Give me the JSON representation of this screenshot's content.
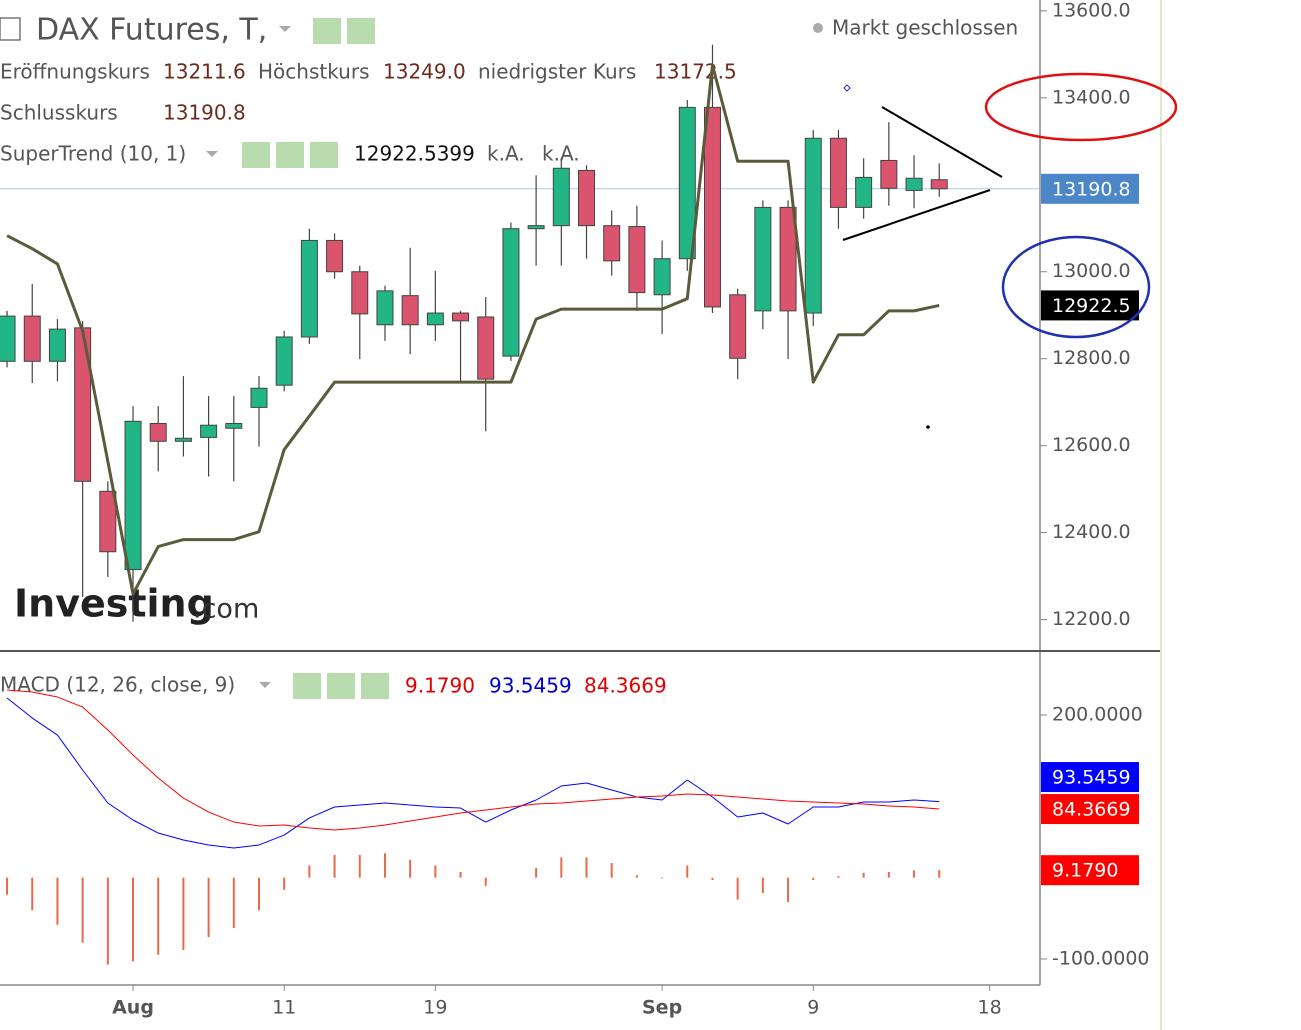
{
  "chart_data": [
    {
      "type": "candlestick",
      "title": "DAX Futures, T,",
      "status": "Markt geschlossen",
      "watermark": "Investing",
      "watermark_suffix": ".com",
      "legend_labels": {
        "open": "Eröffnungskurs",
        "high": "Höchstkurs",
        "low": "niedrigster Kurs",
        "close": "Schlusskurs"
      },
      "last_value_labels": {
        "open": "13211.6",
        "high": "13249.0",
        "low": "13172.5",
        "close": "13190.8"
      },
      "x": [
        0,
        1,
        2,
        3,
        4,
        5,
        6,
        7,
        8,
        9,
        10,
        11,
        12,
        13,
        14,
        15,
        16,
        17,
        18,
        19,
        20,
        21,
        22,
        23,
        24,
        25,
        26,
        27,
        28,
        29,
        30,
        31,
        32,
        33,
        34,
        35,
        36,
        37
      ],
      "xlim": [
        -0.28,
        41
      ],
      "open": [
        12794,
        12898,
        12794,
        12871,
        12495,
        12315,
        12651,
        12610,
        12619,
        12640,
        12688,
        12739,
        12850,
        13072,
        13000,
        12878,
        12945,
        12878,
        12905,
        12896,
        12806,
        13099,
        13106,
        13233,
        13106,
        13104,
        12947,
        13030,
        13378,
        12947,
        12910,
        13148,
        12905,
        13307,
        13148,
        13256,
        13187,
        13211.6
      ],
      "high": [
        12910,
        12972,
        12891,
        12887,
        12518,
        12691,
        12691,
        12760,
        12714,
        12714,
        12760,
        12864,
        13099,
        13088,
        13014,
        12968,
        13055,
        13002,
        12910,
        12942,
        13113,
        13222,
        13261,
        13245,
        13141,
        13152,
        13072,
        13395,
        13522,
        12961,
        13164,
        13164,
        13326,
        13326,
        13261,
        13344,
        13268,
        13249
      ],
      "low": [
        12780,
        12744,
        12748,
        12252,
        12298,
        12195,
        12541,
        12575,
        12529,
        12518,
        12598,
        12725,
        12834,
        12984,
        12799,
        12841,
        12811,
        12841,
        12748,
        12633,
        12795,
        13014,
        13014,
        13030,
        12991,
        12910,
        12857,
        13002,
        12905,
        12753,
        12868,
        12799,
        12875,
        13099,
        13122,
        13152,
        13146,
        13172.5
      ],
      "close": [
        12898,
        12794,
        12868,
        12518,
        12356,
        12656,
        12610,
        12617,
        12647,
        12651,
        12732,
        12850,
        13072,
        13000,
        12903,
        12956,
        12878,
        12905,
        12887,
        12753,
        13099,
        13106,
        13238,
        13106,
        13025,
        12952,
        13030,
        13378,
        12919,
        12801,
        13148,
        12910,
        13307,
        13148,
        13217,
        13192,
        13215,
        13190.8
      ],
      "up_color": "#22b585",
      "down_color": "#d9546c",
      "last_price_color": "#4a86c8",
      "series": [
        {
          "name": "SuperTrend (10, 1)",
          "color": "#5b5b3b",
          "values": [
            13083,
            13053,
            13018,
            12864,
            12564,
            12259,
            12368,
            12384,
            12384,
            12384,
            12402,
            12591,
            12668,
            12746,
            12746,
            12746,
            12746,
            12746,
            12746,
            12746,
            12746,
            12891,
            12914,
            12914,
            12914,
            12914,
            12914,
            12938,
            13475,
            13254,
            13254,
            13254,
            12746,
            12855,
            12855,
            12910,
            12910,
            12922.5399
          ],
          "extra_labels": [
            "k.A.",
            "k.A."
          ],
          "last_value_label": "12922.5",
          "label_color": "#000000"
        }
      ],
      "ylim": [
        12130,
        13625
      ],
      "yticks": [
        {
          "value": 13600,
          "label": "13600.0"
        },
        {
          "value": 13400,
          "label": "13400.0"
        },
        {
          "value": 13000,
          "label": "13000.0"
        },
        {
          "value": 12800,
          "label": "12800.0"
        },
        {
          "value": 12600,
          "label": "12600.0"
        },
        {
          "value": 12400,
          "label": "12400.0"
        },
        {
          "value": 12200,
          "label": "12200.0"
        }
      ]
    },
    {
      "type": "line",
      "title": "MACD (12, 26, close, 9)",
      "x": [
        0,
        1,
        2,
        3,
        4,
        5,
        6,
        7,
        8,
        9,
        10,
        11,
        12,
        13,
        14,
        15,
        16,
        17,
        18,
        19,
        20,
        21,
        22,
        23,
        24,
        25,
        26,
        27,
        28,
        29,
        30,
        31,
        32,
        33,
        34,
        35,
        36,
        37
      ],
      "xlim": [
        -0.28,
        41
      ],
      "xticks": [
        {
          "value": 5,
          "label": "Aug"
        },
        {
          "value": 11,
          "label": "11"
        },
        {
          "value": 17,
          "label": "19"
        },
        {
          "value": 26,
          "label": "Sep"
        },
        {
          "value": 32,
          "label": "9"
        },
        {
          "value": 39,
          "label": "18"
        }
      ],
      "series": [
        {
          "color": "#0000ff",
          "values": [
            220.9,
            196.3,
            175.4,
            132.4,
            91.8,
            70.9,
            54.9,
            46.3,
            40.2,
            36.5,
            40.2,
            52.4,
            73.4,
            86.9,
            89.3,
            91.8,
            89.3,
            86.9,
            85.6,
            68.4,
            83.2,
            95.5,
            112.7,
            116.4,
            107.8,
            99.2,
            95.5,
            120.1,
            99.2,
            74.6,
            79.5,
            66.0,
            86.9,
            86.9,
            93.0,
            93.0,
            95.5,
            93.5459
          ]
        },
        {
          "color": "#ff0000",
          "values": [
            230.7,
            228.3,
            222.1,
            209.8,
            181.6,
            150.8,
            122.5,
            97.9,
            80.7,
            68.4,
            63.5,
            64.8,
            61.1,
            58.6,
            61.1,
            64.8,
            69.7,
            74.6,
            79.5,
            83.2,
            86.9,
            90.6,
            91.8,
            94.3,
            96.7,
            99.2,
            100.4,
            102.9,
            101.6,
            99.2,
            96.7,
            94.3,
            93.0,
            91.8,
            90.6,
            88.1,
            86.9,
            84.3669
          ]
        }
      ],
      "histogram": {
        "color": "#e8694a",
        "values": [
          -21,
          -40,
          -58,
          -80,
          -107,
          -103,
          -95,
          -89,
          -73,
          -62,
          -40,
          -15,
          15,
          28,
          28,
          30,
          22,
          15,
          7,
          -10,
          0,
          12,
          25,
          25,
          18,
          3,
          -1,
          15,
          -3,
          -27,
          -19,
          -30,
          -3,
          2,
          6,
          7,
          9,
          9.179
        ],
        "last_value_label": "9.1790"
      },
      "ylim": [
        -132,
        277.5
      ],
      "yticks": [
        {
          "value": 200,
          "label": "200.0000"
        },
        {
          "value": -100,
          "label": "-100.0000"
        }
      ]
    }
  ]
}
